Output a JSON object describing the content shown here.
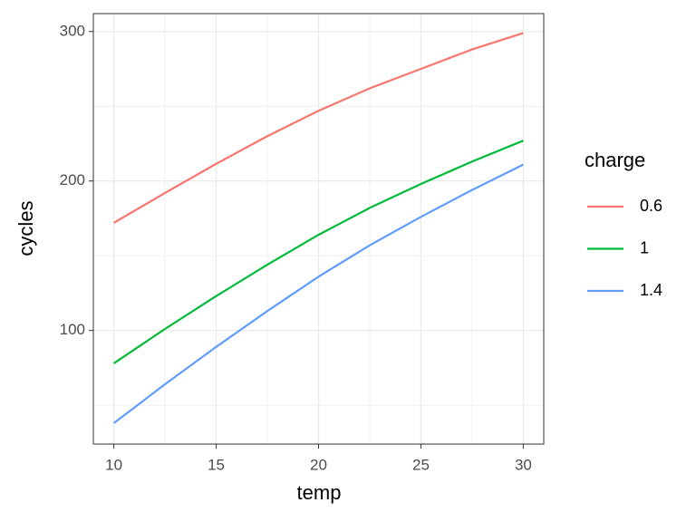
{
  "chart_data": {
    "type": "line",
    "x_label": "temp",
    "y_label": "cycles",
    "legend_title": "charge",
    "x": [
      10,
      12.5,
      15,
      17.5,
      20,
      22.5,
      25,
      27.5,
      30
    ],
    "series": [
      {
        "name": "0.6",
        "color": "#f8766d",
        "values": [
          172,
          192,
          211.5,
          230,
          247,
          262,
          275,
          288,
          299
        ]
      },
      {
        "name": "1",
        "color": "#00ba38",
        "values": [
          78,
          101,
          123,
          144,
          164,
          182,
          198,
          213,
          227
        ]
      },
      {
        "name": "1.4",
        "color": "#619cff",
        "values": [
          38,
          64,
          89,
          113,
          136,
          157,
          176,
          194,
          211
        ]
      }
    ],
    "xlim": [
      9,
      31
    ],
    "ylim": [
      24,
      312
    ],
    "xticks": [
      10,
      15,
      20,
      25,
      30
    ],
    "yticks": [
      100,
      200,
      300
    ],
    "grid": true,
    "minor_grid": true,
    "legend": "right"
  }
}
